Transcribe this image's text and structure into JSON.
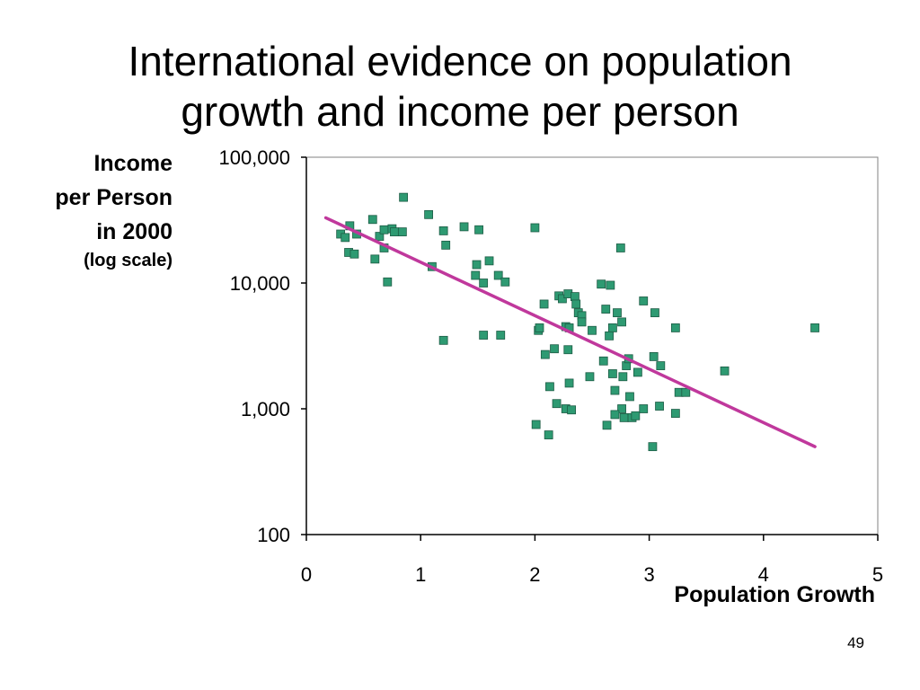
{
  "title_line1": "International evidence on population",
  "title_line2": "growth and income per person",
  "page_number": "49",
  "colors": {
    "marker": "#2e9a72",
    "marker_edge": "#1d5c45",
    "trend": "#c0389c",
    "axis": "#000000"
  },
  "chart_data": {
    "type": "scatter",
    "xlabel": "Population Growth",
    "ylabel_lines": [
      "Income",
      "per Person",
      "in 2000"
    ],
    "ylabel_note": "(log scale)",
    "xlim": [
      0,
      5
    ],
    "ylim": [
      100,
      100000
    ],
    "yscale": "log",
    "xticks": [
      "0",
      "1",
      "2",
      "3",
      "4",
      "5"
    ],
    "yticks": [
      {
        "value": 100,
        "label": "100"
      },
      {
        "value": 1000,
        "label": "1,000"
      },
      {
        "value": 10000,
        "label": "10,000"
      },
      {
        "value": 100000,
        "label": "100,000"
      }
    ],
    "grid": false,
    "trend_line": [
      [
        0.17,
        33000
      ],
      [
        4.45,
        500
      ]
    ],
    "points": [
      [
        0.85,
        48000
      ],
      [
        1.07,
        35000
      ],
      [
        0.38,
        28500
      ],
      [
        0.3,
        24500
      ],
      [
        0.34,
        23000
      ],
      [
        0.44,
        24500
      ],
      [
        0.58,
        32000
      ],
      [
        0.64,
        23500
      ],
      [
        0.68,
        26500
      ],
      [
        0.75,
        27000
      ],
      [
        0.77,
        25500
      ],
      [
        0.84,
        25500
      ],
      [
        0.68,
        19000
      ],
      [
        0.37,
        17500
      ],
      [
        0.42,
        17000
      ],
      [
        0.6,
        15500
      ],
      [
        0.71,
        10200
      ],
      [
        1.2,
        26000
      ],
      [
        1.22,
        20000
      ],
      [
        1.38,
        28000
      ],
      [
        1.51,
        26500
      ],
      [
        1.1,
        13500
      ],
      [
        1.48,
        11500
      ],
      [
        1.49,
        14000
      ],
      [
        1.6,
        15000
      ],
      [
        1.68,
        11500
      ],
      [
        1.55,
        10000
      ],
      [
        1.74,
        10200
      ],
      [
        1.2,
        3500
      ],
      [
        1.55,
        3850
      ],
      [
        1.7,
        3850
      ],
      [
        2.0,
        27500
      ],
      [
        2.03,
        4200
      ],
      [
        2.04,
        4400
      ],
      [
        2.08,
        6800
      ],
      [
        2.21,
        7900
      ],
      [
        2.24,
        7500
      ],
      [
        2.29,
        8200
      ],
      [
        2.35,
        7800
      ],
      [
        2.36,
        6800
      ],
      [
        2.38,
        5800
      ],
      [
        2.41,
        5500
      ],
      [
        2.41,
        4900
      ],
      [
        2.27,
        4500
      ],
      [
        2.3,
        4400
      ],
      [
        2.5,
        4200
      ],
      [
        2.58,
        9800
      ],
      [
        2.66,
        9600
      ],
      [
        2.62,
        6200
      ],
      [
        2.72,
        5800
      ],
      [
        2.76,
        4900
      ],
      [
        2.68,
        4400
      ],
      [
        2.65,
        3800
      ],
      [
        2.75,
        19000
      ],
      [
        2.95,
        7200
      ],
      [
        3.05,
        5800
      ],
      [
        3.23,
        4400
      ],
      [
        4.45,
        4400
      ],
      [
        2.09,
        2700
      ],
      [
        2.17,
        3000
      ],
      [
        2.29,
        2950
      ],
      [
        2.6,
        2400
      ],
      [
        2.8,
        2200
      ],
      [
        2.82,
        2500
      ],
      [
        3.04,
        2600
      ],
      [
        3.1,
        2200
      ],
      [
        2.48,
        1800
      ],
      [
        2.68,
        1900
      ],
      [
        2.77,
        1800
      ],
      [
        2.9,
        1950
      ],
      [
        3.66,
        2000
      ],
      [
        2.13,
        1500
      ],
      [
        2.3,
        1600
      ],
      [
        2.7,
        1400
      ],
      [
        2.83,
        1250
      ],
      [
        2.19,
        1100
      ],
      [
        2.27,
        1000
      ],
      [
        2.32,
        980
      ],
      [
        2.76,
        1000
      ],
      [
        2.95,
        1000
      ],
      [
        2.7,
        900
      ],
      [
        2.78,
        850
      ],
      [
        2.85,
        850
      ],
      [
        2.88,
        880
      ],
      [
        3.23,
        920
      ],
      [
        3.09,
        1050
      ],
      [
        3.26,
        1350
      ],
      [
        3.32,
        1350
      ],
      [
        2.01,
        750
      ],
      [
        2.12,
        620
      ],
      [
        2.63,
        740
      ],
      [
        3.03,
        500
      ]
    ]
  }
}
